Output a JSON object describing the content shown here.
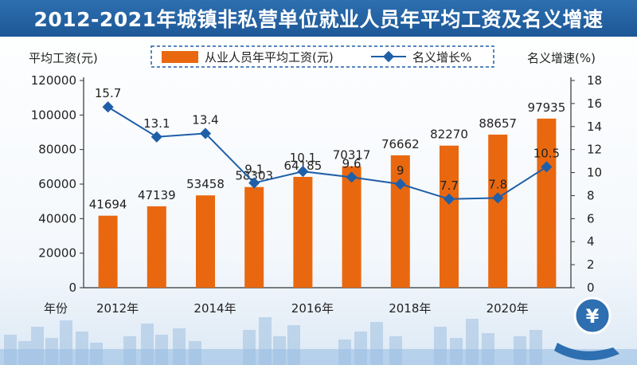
{
  "colors": {
    "bar": "#e9680f",
    "line": "#1f5fa8",
    "title_bg": "#1d5796",
    "skyline": "#9fbfe0"
  },
  "chart_data": {
    "type": "bar+line",
    "title": "2012-2021年城镇非私营单位就业人员年平均工资及名义增速",
    "categories": [
      "2012",
      "2013",
      "2014",
      "2015",
      "2016",
      "2017",
      "2018",
      "2019",
      "2020",
      "2021"
    ],
    "x_tick_labels": [
      {
        "index": 0,
        "label": "2012年"
      },
      {
        "index": 2,
        "label": "2014年"
      },
      {
        "index": 4,
        "label": "2016年"
      },
      {
        "index": 6,
        "label": "2018年"
      },
      {
        "index": 8,
        "label": "2020年"
      }
    ],
    "x_axis_label": "年份",
    "y_left_label": "平均工资(元)",
    "y_right_label": "名义增速(%)",
    "y_left_ticks": [
      "0",
      "20000",
      "40000",
      "60000",
      "80000",
      "100000",
      "120000"
    ],
    "y_right_ticks": [
      "0",
      "2",
      "4",
      "6",
      "8",
      "10",
      "12",
      "14",
      "16",
      "18"
    ],
    "y_left_range": [
      0,
      120000
    ],
    "y_right_range": [
      0,
      18
    ],
    "legend_position": "top",
    "series": [
      {
        "name": "从业人员年平均工资(元)",
        "kind": "bar",
        "axis": "left",
        "values": [
          41694,
          47139,
          53458,
          58303,
          64185,
          70317,
          76662,
          82270,
          88657,
          97935
        ],
        "labels": [
          "41694",
          "47139",
          "53458",
          "58303",
          "64185",
          "70317",
          "76662",
          "82270",
          "88657",
          "97935"
        ]
      },
      {
        "name": "名义增长%",
        "kind": "line",
        "axis": "right",
        "values": [
          15.7,
          13.1,
          13.4,
          9.1,
          10.1,
          9.6,
          9,
          7.7,
          7.8,
          10.5
        ],
        "labels": [
          "15.7",
          "13.1",
          "13.4",
          "9.1",
          "10.1",
          "9.6",
          "9",
          "7.7",
          "7.8",
          "10.5"
        ]
      }
    ]
  },
  "badge": {
    "symbol": "¥",
    "icon": "yen-coin-hand-icon"
  }
}
